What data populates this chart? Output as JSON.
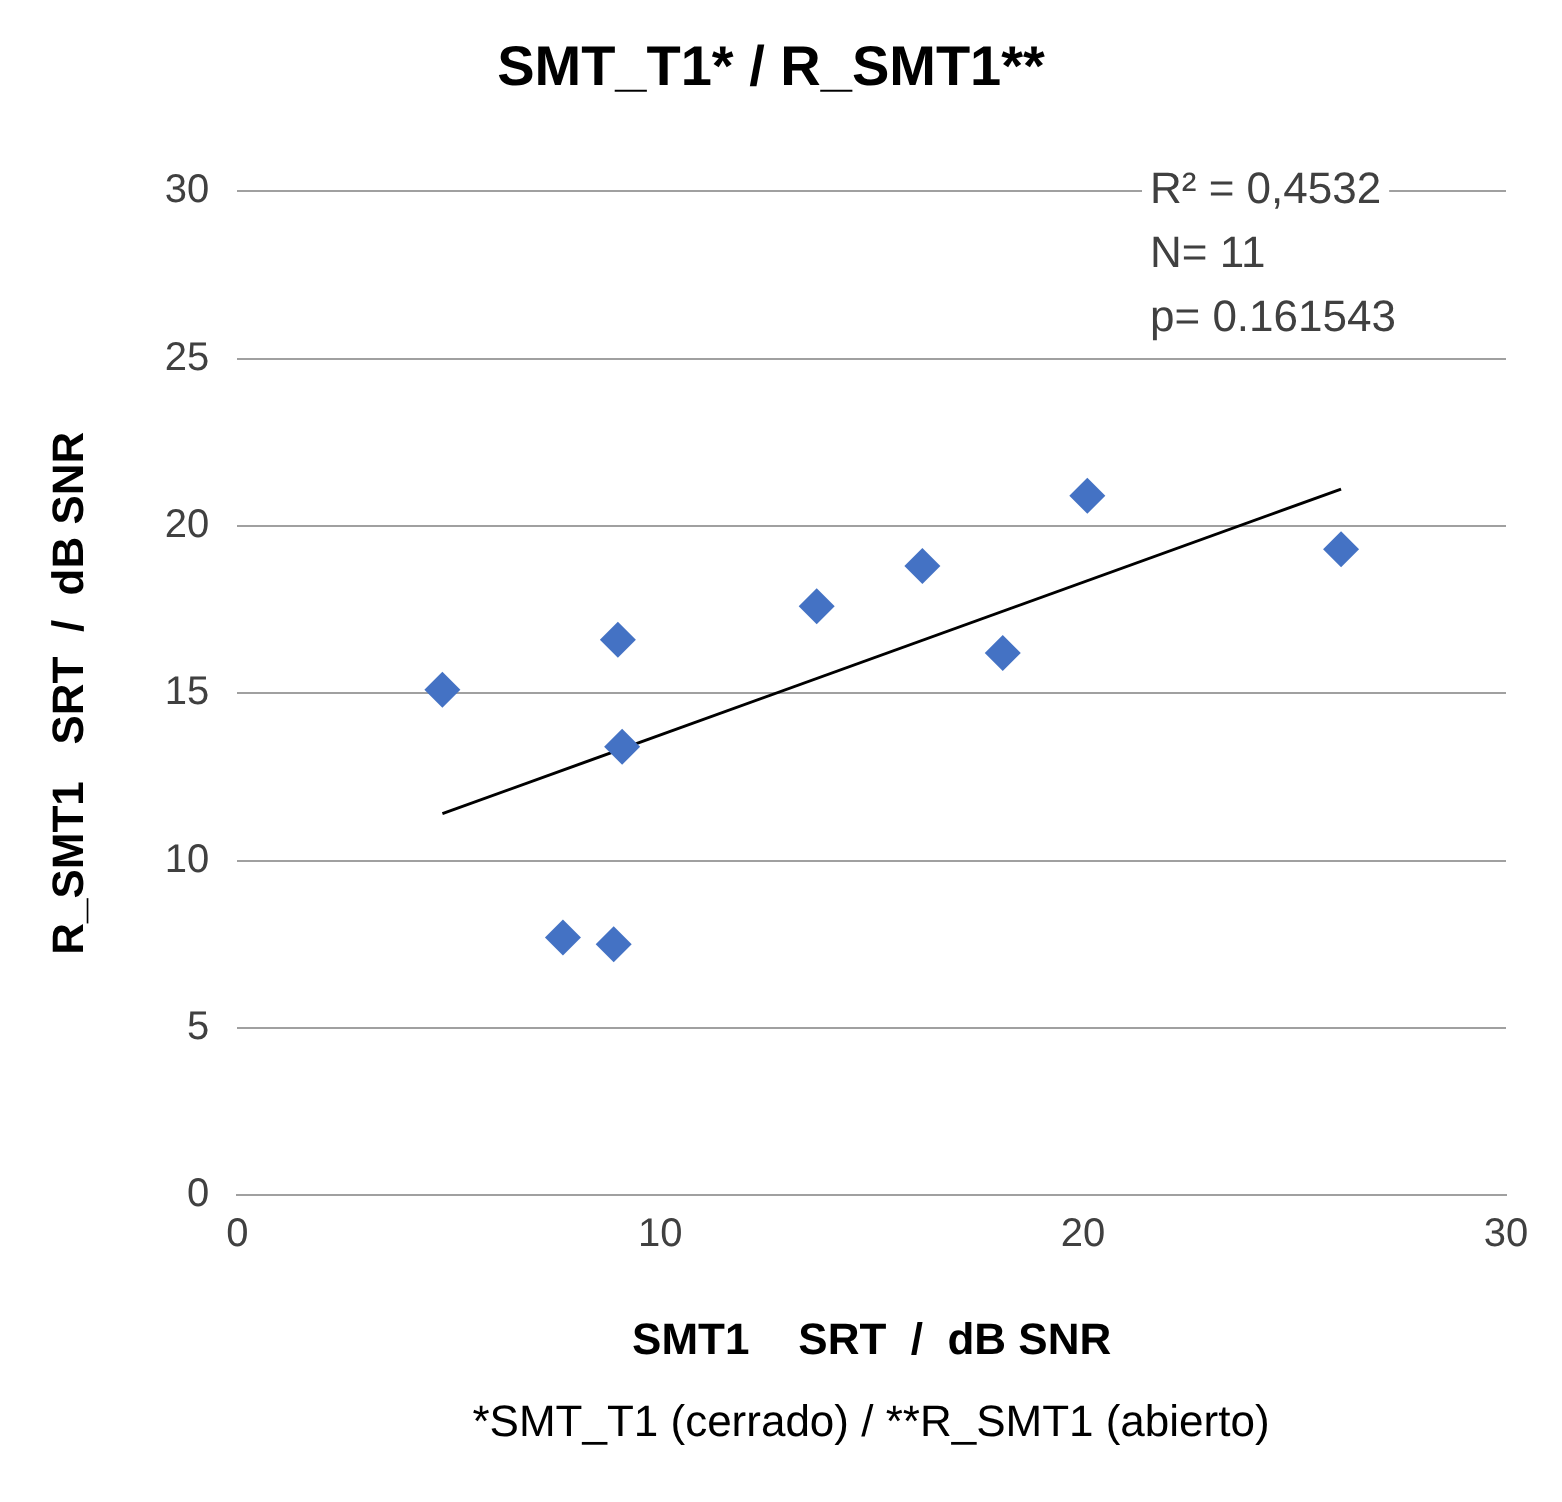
{
  "chart_data": {
    "type": "scatter",
    "title": "SMT_T1* / R_SMT1**",
    "xlabel": "SMT1    SRT  /  dB SNR",
    "ylabel": "R_SMT1   SRT  /  dB SNR",
    "xlim": [
      0,
      30
    ],
    "ylim": [
      0,
      30
    ],
    "xticks": [
      0,
      10,
      20,
      30
    ],
    "yticks": [
      0,
      5,
      10,
      15,
      20,
      25,
      30
    ],
    "grid": "y",
    "legend": false,
    "marker": "diamond",
    "series": [
      {
        "color": "#4472c4",
        "x": [
          4.85,
          7.7,
          8.9,
          9.0,
          9.1,
          13.7,
          16.2,
          18.1,
          20.1,
          26.1
        ],
        "values": [
          15.1,
          7.7,
          7.5,
          16.6,
          13.4,
          17.6,
          18.8,
          16.2,
          20.9,
          19.3
        ]
      },
      {
        "type": "line",
        "color": "#000000",
        "marker": "none",
        "line_style": "solid",
        "x": [
          4.85,
          26.1
        ],
        "values": [
          11.4,
          21.1
        ]
      }
    ],
    "annotations": [
      "R² = 0,4532",
      "N= 11",
      "p= 0.161543",
      "*SMT_T1 (cerrado) / **R_SMT1 (abierto)"
    ]
  }
}
